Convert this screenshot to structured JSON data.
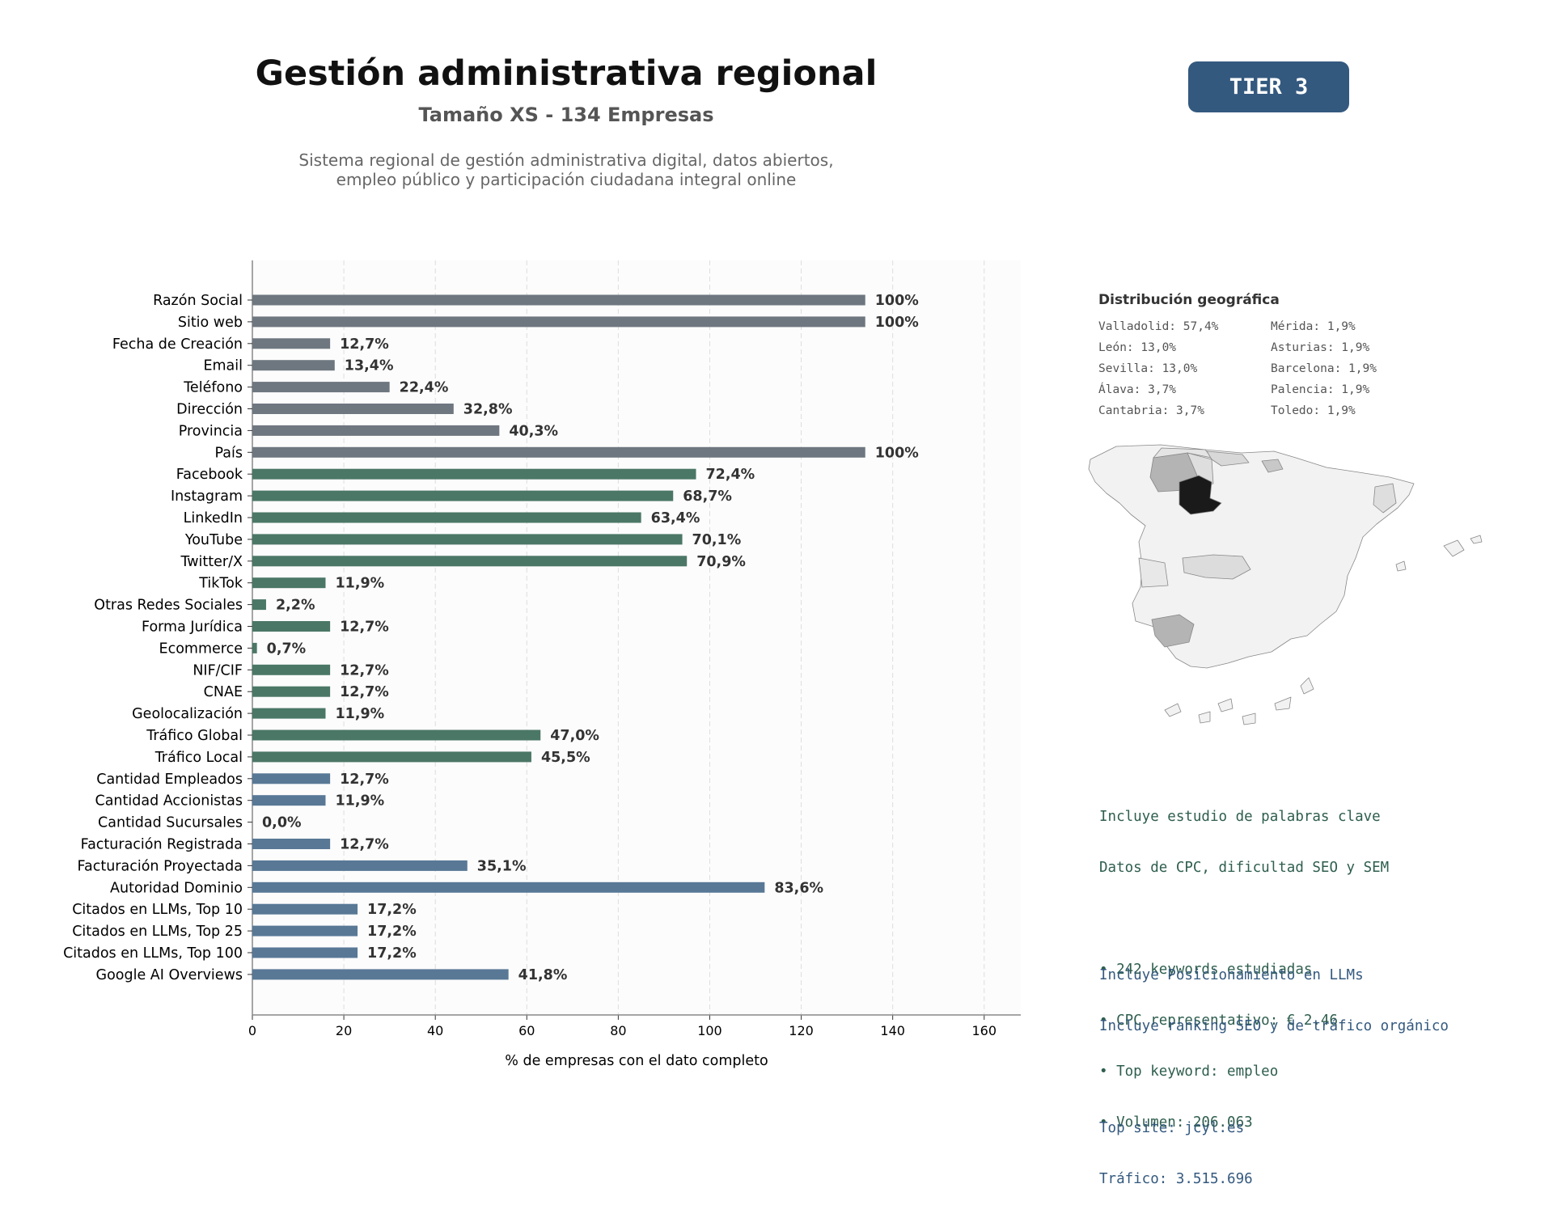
{
  "header": {
    "title": "Gestión administrativa regional",
    "subtitle": "Tamaño XS - 134 Empresas",
    "description_lines": [
      "Sistema regional de gestión administrativa digital, datos abiertos,",
      "empleo público y participación ciudadana integral online"
    ],
    "badge": "TIER 3"
  },
  "colors": {
    "gray": "#6e7780",
    "green": "#4b7766",
    "blue": "#587896",
    "badge": "#34597f"
  },
  "chart_data": {
    "type": "bar",
    "orientation": "horizontal",
    "xlabel": "% de empresas con el dato completo",
    "xlim": [
      0,
      168
    ],
    "xticks": [
      0,
      20,
      40,
      60,
      80,
      100,
      120,
      140,
      160
    ],
    "grid": "vertical dashed",
    "categories": [
      "Razón Social",
      "Sitio web",
      "Fecha de Creación",
      "Email",
      "Teléfono",
      "Dirección",
      "Provincia",
      "País",
      "Facebook",
      "Instagram",
      "LinkedIn",
      "YouTube",
      "Twitter/X",
      "TikTok",
      "Otras Redes Sociales",
      "Forma Jurídica",
      "Ecommerce",
      "NIF/CIF",
      "CNAE",
      "Geolocalización",
      "Tráfico Global",
      "Tráfico Local",
      "Cantidad Empleados",
      "Cantidad Accionistas",
      "Cantidad Sucursales",
      "Facturación Registrada",
      "Facturación Proyectada",
      "Autoridad Dominio",
      "Citados en LLMs, Top 10",
      "Citados en LLMs, Top 25",
      "Citados en LLMs, Top 100",
      "Google AI Overviews"
    ],
    "values": [
      134,
      134,
      17,
      18,
      30,
      44,
      54,
      134,
      97,
      92,
      85,
      94,
      95,
      16,
      3,
      17,
      1,
      17,
      17,
      16,
      63,
      61,
      17,
      16,
      0,
      17,
      47,
      112,
      23,
      23,
      23,
      56
    ],
    "labels": [
      "100%",
      "100%",
      "12,7%",
      "13,4%",
      "22,4%",
      "32,8%",
      "40,3%",
      "100%",
      "72,4%",
      "68,7%",
      "63,4%",
      "70,1%",
      "70,9%",
      "11,9%",
      "2,2%",
      "12,7%",
      "0,7%",
      "12,7%",
      "12,7%",
      "11,9%",
      "47,0%",
      "45,5%",
      "12,7%",
      "11,9%",
      "0,0%",
      "12,7%",
      "35,1%",
      "83,6%",
      "17,2%",
      "17,2%",
      "17,2%",
      "41,8%"
    ],
    "groups": [
      "gray",
      "gray",
      "gray",
      "gray",
      "gray",
      "gray",
      "gray",
      "gray",
      "green",
      "green",
      "green",
      "green",
      "green",
      "green",
      "green",
      "green",
      "green",
      "green",
      "green",
      "green",
      "green",
      "green",
      "blue",
      "blue",
      "blue",
      "blue",
      "blue",
      "blue",
      "blue",
      "blue",
      "blue",
      "blue"
    ]
  },
  "geo": {
    "title": "Distribución geográfica",
    "items": [
      "Valladolid: 57,4%",
      "Mérida: 1,9%",
      "León: 13,0%",
      "Asturias: 1,9%",
      "Sevilla: 13,0%",
      "Barcelona: 1,9%",
      "Álava: 3,7%",
      "Palencia: 1,9%",
      "Cantabria: 3,7%",
      "Toledo: 1,9%"
    ]
  },
  "keywords": {
    "lines": [
      "Incluye estudio de palabras clave",
      "Datos de CPC, dificultad SEO y SEM",
      "",
      "• 242 keywords estudiadas",
      "• CPC representativo: € 2.46",
      "• Top keyword: empleo",
      "• Volumen: 206.063"
    ]
  },
  "llm": {
    "lines": [
      "Incluye Posicionamiento en LLMs",
      "Incluye ranking SEO y de tráfico orgánico",
      "",
      "Top site: jcyl.es",
      "Tráfico: 3.515.696"
    ]
  }
}
